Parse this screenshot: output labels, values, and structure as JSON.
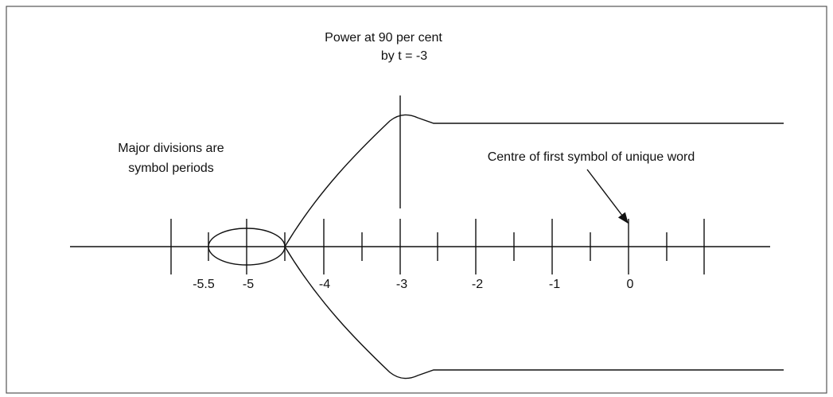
{
  "annotations": {
    "power": [
      "Power at 90 per cent",
      "by t = -3"
    ],
    "divisions": [
      "Major divisions are",
      "symbol periods"
    ],
    "centre": "Centre of first symbol of unique word"
  },
  "axis_labels": [
    "-5.5",
    "-5",
    "-4",
    "-3",
    "-2",
    "-1",
    "0"
  ]
}
